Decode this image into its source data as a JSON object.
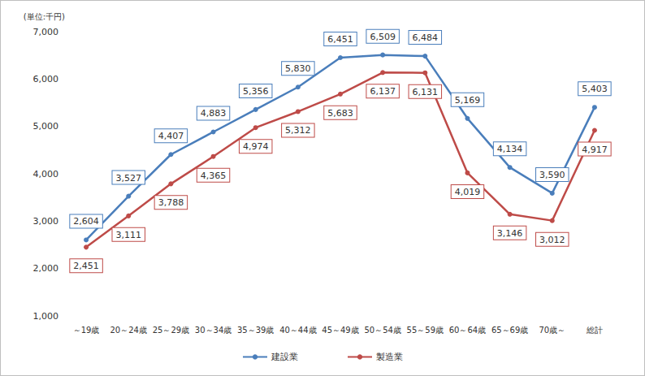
{
  "chart_data": {
    "type": "line",
    "y_label": "(単位:千円)",
    "categories": [
      "～19歳",
      "20～24歳",
      "25～29歳",
      "30～34歳",
      "35～39歳",
      "40～44歳",
      "45～49歳",
      "50～54歳",
      "55～59歳",
      "60～64歳",
      "65～69歳",
      "70歳～",
      "総計"
    ],
    "series": [
      {
        "name": "建設業",
        "color": "#4a7ebb",
        "marker": "circle",
        "values": [
          2604,
          3527,
          4407,
          4883,
          5356,
          5830,
          6451,
          6509,
          6484,
          5169,
          4134,
          3590,
          5403
        ],
        "value_labels": [
          "2,604",
          "3,527",
          "4,407",
          "4,883",
          "5,356",
          "5,830",
          "6,451",
          "6,509",
          "6,484",
          "5,169",
          "4,134",
          "3,590",
          "5,403"
        ]
      },
      {
        "name": "製造業",
        "color": "#be4b48",
        "marker": "circle",
        "values": [
          2451,
          3111,
          3788,
          4365,
          4974,
          5312,
          5683,
          6137,
          6131,
          4019,
          3146,
          3012,
          4917
        ],
        "value_labels": [
          "2,451",
          "3,111",
          "3,788",
          "4,365",
          "4,974",
          "5,312",
          "5,683",
          "6,137",
          "6,131",
          "4,019",
          "3,146",
          "3,012",
          "4,917"
        ]
      }
    ],
    "ylim": [
      1000,
      7000
    ],
    "yticks": [
      {
        "value": 1000,
        "label": "1,000"
      },
      {
        "value": 2000,
        "label": "2,000"
      },
      {
        "value": 3000,
        "label": "3,000"
      },
      {
        "value": 4000,
        "label": "4,000"
      },
      {
        "value": 5000,
        "label": "5,000"
      },
      {
        "value": 6000,
        "label": "6,000"
      },
      {
        "value": 7000,
        "label": "7,000"
      }
    ],
    "grid": false,
    "legend": "bottom",
    "data_labels": true
  }
}
